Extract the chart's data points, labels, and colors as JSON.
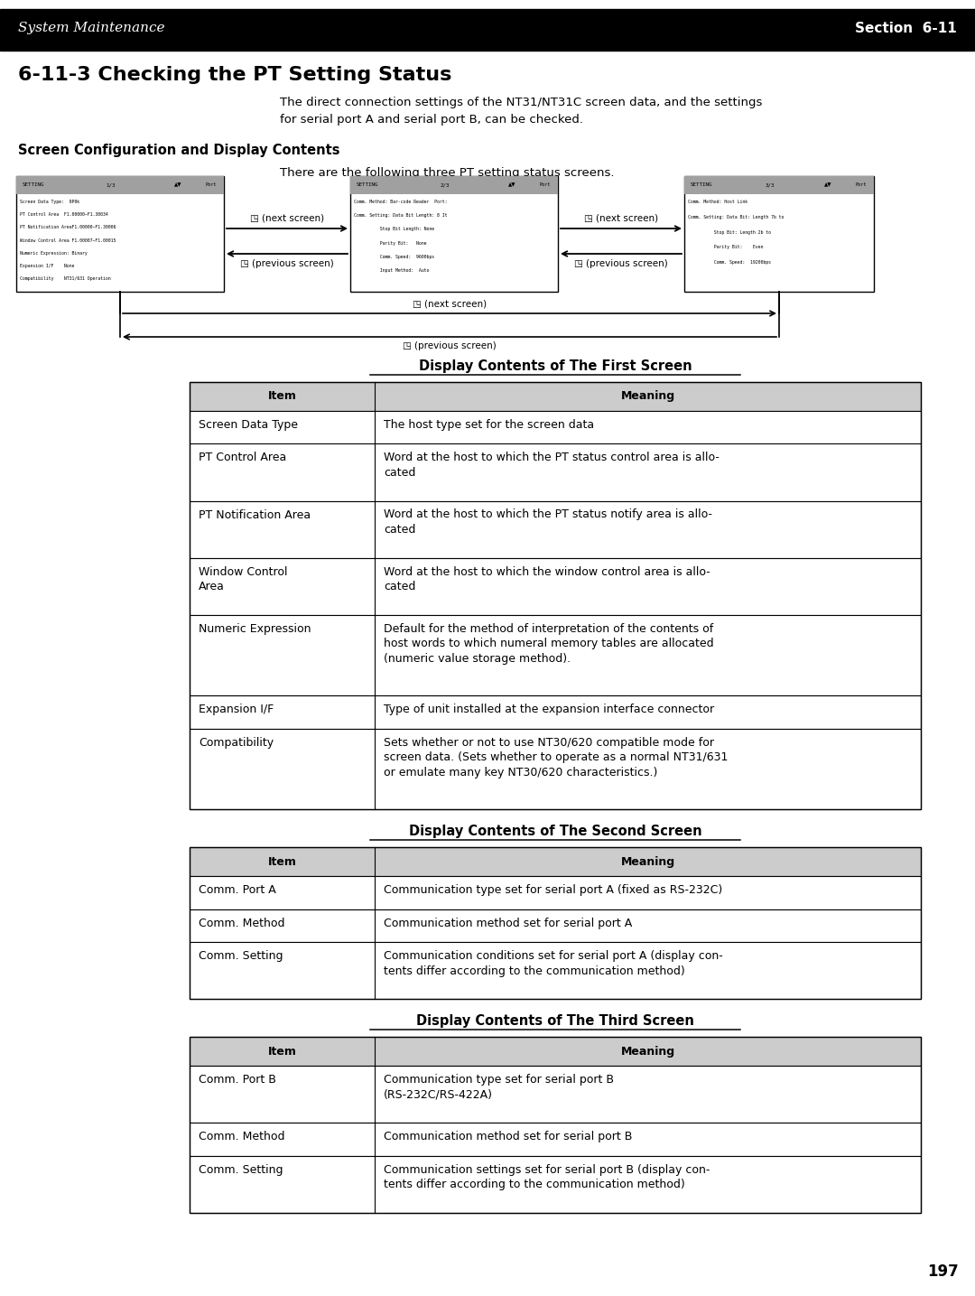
{
  "title_header_left": "System Maintenance",
  "title_header_right": "Section  6-11",
  "section_title": "6-11-3 Checking the PT Setting Status",
  "intro_text": "The direct connection settings of the NT31/NT31C screen data, and the settings\nfor serial port A and serial port B, can be checked.",
  "screen_config_label": "Screen Configuration and Display Contents",
  "screen_config_text": "There are the following three PT setting status screens.",
  "table1_title": "Display Contents of The First Screen",
  "table1_headers": [
    "Item",
    "Meaning"
  ],
  "table1_rows": [
    [
      "Screen Data Type",
      "The host type set for the screen data"
    ],
    [
      "PT Control Area",
      "Word at the host to which the PT status control area is allo-\ncated"
    ],
    [
      "PT Notification Area",
      "Word at the host to which the PT status notify area is allo-\ncated"
    ],
    [
      "Window Control\nArea",
      "Word at the host to which the window control area is allo-\ncated"
    ],
    [
      "Numeric Expression",
      "Default for the method of interpretation of the contents of\nhost words to which numeral memory tables are allocated\n(numeric value storage method)."
    ],
    [
      "Expansion I/F",
      "Type of unit installed at the expansion interface connector"
    ],
    [
      "Compatibility",
      "Sets whether or not to use NT30/620 compatible mode for\nscreen data. (Sets whether to operate as a normal NT31/631\nor emulate many key NT30/620 characteristics.)"
    ]
  ],
  "table2_title": "Display Contents of The Second Screen",
  "table2_headers": [
    "Item",
    "Meaning"
  ],
  "table2_rows": [
    [
      "Comm. Port A",
      "Communication type set for serial port A (fixed as RS-232C)"
    ],
    [
      "Comm. Method",
      "Communication method set for serial port A"
    ],
    [
      "Comm. Setting",
      "Communication conditions set for serial port A (display con-\ntents differ according to the communication method)"
    ]
  ],
  "table3_title": "Display Contents of The Third Screen",
  "table3_headers": [
    "Item",
    "Meaning"
  ],
  "table3_rows": [
    [
      "Comm. Port B",
      "Communication type set for serial port B\n(RS-232C/RS-422A)"
    ],
    [
      "Comm. Method",
      "Communication method set for serial port B"
    ],
    [
      "Comm. Setting",
      "Communication settings set for serial port B (display con-\ntents differ according to the communication method)"
    ]
  ],
  "page_number": "197",
  "bg_color": "#ffffff"
}
